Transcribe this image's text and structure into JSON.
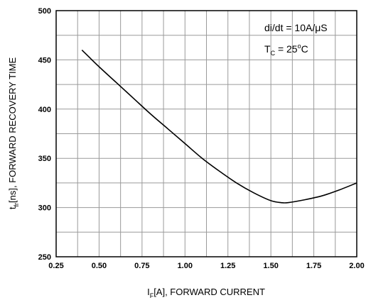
{
  "chart_data": {
    "type": "line",
    "title": "",
    "xlabel": {
      "symbol": "I",
      "subscript": "F",
      "rest": "[A], FORWARD CURRENT"
    },
    "ylabel": {
      "symbol": "t",
      "subscript": "fr",
      "rest": "[ns], FORWARD RECOVERY TIME"
    },
    "xlim": [
      0.25,
      2.0
    ],
    "ylim": [
      250,
      500
    ],
    "x_ticks": [
      "0.25",
      "0.50",
      "0.75",
      "1.00",
      "1.25",
      "1.50",
      "1.75",
      "2.00"
    ],
    "y_ticks": [
      "250",
      "300",
      "350",
      "400",
      "450",
      "500"
    ],
    "x_grid_step": 0.125,
    "y_grid_step": 25,
    "grid": true,
    "annotations": {
      "didt": "di/dt = 10A/μS",
      "tc_symbol": "T",
      "tc_subscript": "C",
      "tc_value": " = 25",
      "tc_degree": "o",
      "tc_unit": "C"
    },
    "series": [
      {
        "x": [
          0.4,
          0.5,
          0.6,
          0.7,
          0.8,
          0.9,
          1.0,
          1.1,
          1.2,
          1.3,
          1.4,
          1.5,
          1.56,
          1.6,
          1.7,
          1.8,
          1.9,
          2.0
        ],
        "y": [
          460,
          443,
          427,
          411,
          395,
          380,
          365,
          350,
          337,
          325,
          315,
          307,
          305,
          305,
          308,
          312,
          318,
          325
        ]
      }
    ]
  }
}
